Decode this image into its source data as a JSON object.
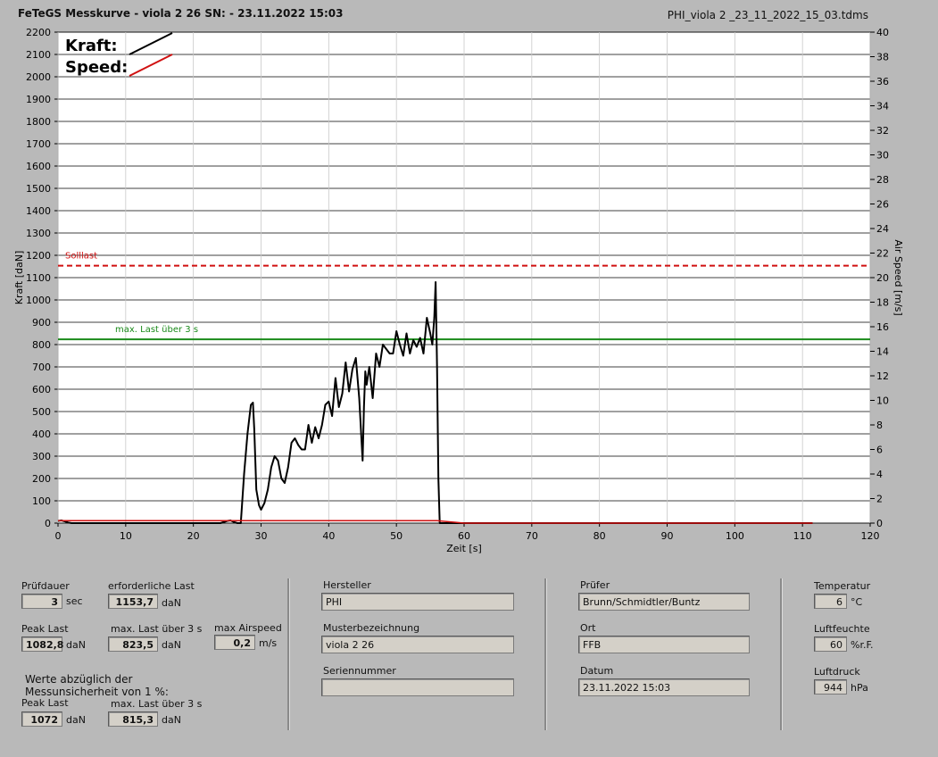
{
  "header": {
    "title_left": "FeTeGS Messkurve - viola 2 26  SN:  - 23.11.2022 15:03",
    "title_right": "PHI_viola 2 _23_11_2022_15_03.tdms"
  },
  "chart_data": {
    "type": "line",
    "xlabel": "Zeit [s]",
    "ylabel_left": "Kraft [daN]",
    "ylabel_right": "Air Speed [m/s]",
    "xlim": [
      0,
      120
    ],
    "ylim_left": [
      0,
      2200
    ],
    "ylim_right": [
      0,
      40
    ],
    "x_ticks": [
      0,
      10,
      20,
      30,
      40,
      50,
      60,
      70,
      80,
      90,
      100,
      110,
      120
    ],
    "y_ticks_left": [
      0,
      100,
      200,
      300,
      400,
      500,
      600,
      700,
      800,
      900,
      1000,
      1100,
      1200,
      1300,
      1400,
      1500,
      1600,
      1700,
      1800,
      1900,
      2000,
      2100,
      2200
    ],
    "y_ticks_right": [
      0,
      2,
      4,
      6,
      8,
      10,
      12,
      14,
      16,
      18,
      20,
      22,
      24,
      26,
      28,
      30,
      32,
      34,
      36,
      38,
      40
    ],
    "legend": [
      {
        "name": "Kraft:",
        "color": "#000000"
      },
      {
        "name": "Speed:",
        "color": "#d01010"
      }
    ],
    "reference_lines": [
      {
        "label": "Solllast",
        "value": 1153.7,
        "color": "#d01010",
        "style": "dashed"
      },
      {
        "label": "max. Last über  3 s",
        "value": 823.5,
        "color": "#1a8a1a",
        "style": "solid"
      }
    ],
    "series": [
      {
        "name": "Kraft:",
        "color": "#000000",
        "x": [
          0,
          0.5,
          1,
          1.5,
          2,
          24,
          25,
          25.5,
          26,
          26.5,
          27,
          27.5,
          28,
          28.5,
          28.8,
          29,
          29.3,
          29.7,
          30,
          30.5,
          31,
          31.5,
          32,
          32.5,
          33,
          33.5,
          34,
          34.5,
          35,
          35.5,
          36,
          36.5,
          37,
          37.5,
          38,
          38.5,
          39,
          39.5,
          40,
          40.5,
          41,
          41.5,
          42,
          42.5,
          43,
          43.5,
          44,
          44.5,
          45,
          45.2,
          45.4,
          45.6,
          46,
          46.5,
          47,
          47.5,
          48,
          48.5,
          49,
          49.5,
          50,
          50.5,
          51,
          51.5,
          52,
          52.5,
          53,
          53.5,
          54,
          54.5,
          55,
          55.3,
          55.6,
          55.8,
          56,
          56.2,
          56.4,
          56.6,
          57,
          60,
          70,
          80,
          90,
          100,
          110,
          111.5
        ],
        "y": [
          10,
          12,
          8,
          3,
          0,
          0,
          10,
          12,
          5,
          0,
          0,
          220,
          400,
          530,
          540,
          420,
          150,
          80,
          60,
          90,
          150,
          250,
          300,
          280,
          200,
          180,
          250,
          360,
          380,
          350,
          330,
          330,
          440,
          360,
          430,
          380,
          440,
          530,
          545,
          480,
          650,
          520,
          580,
          720,
          590,
          690,
          740,
          560,
          280,
          520,
          680,
          620,
          700,
          560,
          760,
          700,
          800,
          780,
          760,
          760,
          860,
          800,
          750,
          850,
          760,
          820,
          790,
          830,
          760,
          920,
          850,
          800,
          920,
          1080,
          700,
          200,
          0,
          0,
          0,
          0,
          0,
          0,
          0,
          0,
          0,
          0
        ]
      },
      {
        "name": "Speed:",
        "color": "#d01010",
        "x": [
          0,
          56,
          60,
          111.5
        ],
        "y": [
          0.2,
          0.2,
          0,
          0
        ]
      }
    ]
  },
  "panel": {
    "pruefdauer_label": "Prüfdauer",
    "pruefdauer_value": "3",
    "pruefdauer_unit": "sec",
    "erf_last_label": "erforderliche Last",
    "erf_last_value": "1153,7",
    "erf_last_unit": "daN",
    "peak_last_label": "Peak Last",
    "peak_last_value": "1082,8",
    "peak_last_unit": "daN",
    "max_last_label": "max. Last über  3 s",
    "max_last_value": "823,5",
    "max_last_unit": "daN",
    "max_airspeed_label": "max Airspeed",
    "max_airspeed_value": "0,2",
    "max_airspeed_unit": "m/s",
    "werte_line1": "Werte abzüglich der",
    "werte_line2": "Messunsicherheit von 1  %:",
    "peak_last2_label": "Peak Last",
    "peak_last2_value": "1072",
    "peak_last2_unit": "daN",
    "max_last2_label": "max. Last über  3 s",
    "max_last2_value": "815,3",
    "max_last2_unit": "daN",
    "hersteller_label": "Hersteller",
    "hersteller_value": "PHI",
    "muster_label": "Musterbezeichnung",
    "muster_value": "viola 2 26",
    "serien_label": "Seriennummer",
    "serien_value": "",
    "pruefer_label": "Prüfer",
    "pruefer_value": "Brunn/Schmidtler/Buntz",
    "ort_label": "Ort",
    "ort_value": "FFB",
    "datum_label": "Datum",
    "datum_value": "23.11.2022 15:03",
    "temp_label": "Temperatur",
    "temp_value": "6",
    "temp_unit": "°C",
    "feuchte_label": "Luftfeuchte",
    "feuchte_value": "60",
    "feuchte_unit": "%r.F.",
    "druck_label": "Luftdruck",
    "druck_value": "944",
    "druck_unit": "hPa"
  }
}
